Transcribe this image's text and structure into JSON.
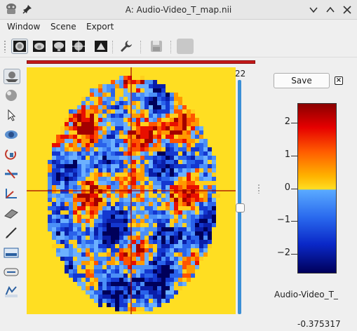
{
  "window": {
    "title": "A: Audio-Video_T_map.nii",
    "icons": [
      "app-logo-icon",
      "pin-icon",
      "chevron-down-icon",
      "chevron-up-icon",
      "close-icon"
    ]
  },
  "menu": {
    "items": [
      "Window",
      "Scene",
      "Export"
    ]
  },
  "toolbar": {
    "view_buttons": [
      "axial-view-icon",
      "coronal-view-icon",
      "sagittal-view-icon",
      "multiplanar-view-icon",
      "render-view-icon"
    ],
    "other_buttons": [
      "wrench-icon",
      "save-disk-icon",
      "blank-swatch-icon"
    ]
  },
  "left_tools": [
    "navigate-tool-icon",
    "sphere-tool-icon",
    "pointer-tool-icon",
    "view-tool-icon",
    "rotate-tool-icon",
    "measure-tool-icon",
    "axes-tool-icon",
    "plane-tool-icon",
    "pen-tool-icon",
    "level-tool-icon",
    "distance-tool-icon",
    "segment-tool-icon"
  ],
  "viewer": {
    "slice_number": "22",
    "slider_value": 0.45,
    "background_color": "#ffde22",
    "crosshair_color": "#a00000"
  },
  "overlay_panel": {
    "save_label": "Save",
    "close_symbol": "×",
    "colorbar_ticks": [
      "2",
      "1",
      "0",
      "−1",
      "−2"
    ],
    "colorbar_range": [
      -2.6,
      2.6
    ],
    "map_label": "Audio-Video_T_",
    "value_readout": "-0.375317"
  }
}
